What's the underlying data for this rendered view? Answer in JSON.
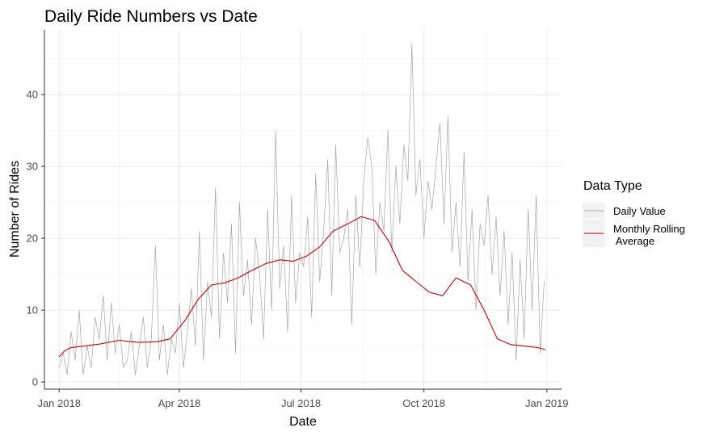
{
  "chart_data": {
    "type": "line",
    "title": "Daily Ride Numbers vs Date",
    "xlabel": "Date",
    "ylabel": "Number of Rides",
    "x_ticks": [
      "Jan 2018",
      "Apr 2018",
      "Jul 2018",
      "Oct 2018",
      "Jan 2019"
    ],
    "x_tick_dates": [
      "2018-01-01",
      "2018-04-01",
      "2018-07-01",
      "2018-10-01",
      "2019-01-01"
    ],
    "xlim": [
      "2017-12-21",
      "2019-01-12"
    ],
    "y_ticks": [
      0,
      10,
      20,
      30,
      40
    ],
    "ylim": [
      -1,
      49
    ],
    "grid": true,
    "legend": {
      "title": "Data Type",
      "position": "right",
      "entries": [
        {
          "label": "Daily Value",
          "color": "#a6a6a6"
        },
        {
          "label": "Monthly Rolling\n Average",
          "color": "#cc0000"
        }
      ]
    },
    "series": [
      {
        "name": "Daily Value",
        "color": "#a6a6a6",
        "x": [
          "2018-01-01",
          "2018-01-04",
          "2018-01-07",
          "2018-01-10",
          "2018-01-13",
          "2018-01-16",
          "2018-01-19",
          "2018-01-22",
          "2018-01-25",
          "2018-01-28",
          "2018-01-31",
          "2018-02-03",
          "2018-02-06",
          "2018-02-09",
          "2018-02-12",
          "2018-02-15",
          "2018-02-18",
          "2018-02-21",
          "2018-02-24",
          "2018-02-27",
          "2018-03-02",
          "2018-03-05",
          "2018-03-08",
          "2018-03-11",
          "2018-03-14",
          "2018-03-17",
          "2018-03-20",
          "2018-03-23",
          "2018-03-26",
          "2018-03-29",
          "2018-04-01",
          "2018-04-04",
          "2018-04-07",
          "2018-04-10",
          "2018-04-13",
          "2018-04-16",
          "2018-04-19",
          "2018-04-22",
          "2018-04-25",
          "2018-04-28",
          "2018-05-01",
          "2018-05-04",
          "2018-05-07",
          "2018-05-10",
          "2018-05-13",
          "2018-05-16",
          "2018-05-19",
          "2018-05-22",
          "2018-05-25",
          "2018-05-28",
          "2018-05-31",
          "2018-06-03",
          "2018-06-06",
          "2018-06-09",
          "2018-06-12",
          "2018-06-15",
          "2018-06-18",
          "2018-06-21",
          "2018-06-24",
          "2018-06-27",
          "2018-06-30",
          "2018-07-03",
          "2018-07-06",
          "2018-07-09",
          "2018-07-12",
          "2018-07-15",
          "2018-07-18",
          "2018-07-21",
          "2018-07-24",
          "2018-07-27",
          "2018-07-30",
          "2018-08-02",
          "2018-08-05",
          "2018-08-08",
          "2018-08-11",
          "2018-08-14",
          "2018-08-17",
          "2018-08-20",
          "2018-08-23",
          "2018-08-26",
          "2018-08-29",
          "2018-09-01",
          "2018-09-04",
          "2018-09-07",
          "2018-09-10",
          "2018-09-13",
          "2018-09-16",
          "2018-09-19",
          "2018-09-22",
          "2018-09-25",
          "2018-09-28",
          "2018-10-01",
          "2018-10-04",
          "2018-10-07",
          "2018-10-10",
          "2018-10-13",
          "2018-10-16",
          "2018-10-19",
          "2018-10-22",
          "2018-10-25",
          "2018-10-28",
          "2018-10-31",
          "2018-11-03",
          "2018-11-06",
          "2018-11-09",
          "2018-11-12",
          "2018-11-15",
          "2018-11-18",
          "2018-11-21",
          "2018-11-24",
          "2018-11-27",
          "2018-11-30",
          "2018-12-03",
          "2018-12-06",
          "2018-12-09",
          "2018-12-12",
          "2018-12-15",
          "2018-12-18",
          "2018-12-21",
          "2018-12-24",
          "2018-12-27",
          "2018-12-30"
        ],
        "values": [
          2,
          4,
          1,
          7,
          3,
          10,
          1,
          5,
          2,
          9,
          6,
          12,
          3,
          11,
          4,
          8,
          2,
          3,
          7,
          1,
          5,
          9,
          2,
          6,
          19,
          3,
          8,
          1,
          6,
          4,
          11,
          2,
          7,
          13,
          5,
          21,
          3,
          14,
          9,
          27,
          6,
          18,
          11,
          22,
          4,
          25,
          12,
          17,
          8,
          20,
          15,
          6,
          24,
          10,
          35,
          13,
          19,
          7,
          26,
          11,
          18,
          16,
          23,
          9,
          29,
          14,
          21,
          31,
          12,
          33,
          18,
          20,
          24,
          8,
          26,
          16,
          28,
          34,
          30,
          15,
          25,
          21,
          35,
          18,
          30,
          22,
          33,
          28,
          47,
          26,
          31,
          20,
          28,
          24,
          30,
          36,
          22,
          37,
          18,
          25,
          16,
          32,
          14,
          24,
          10,
          22,
          19,
          26,
          15,
          23,
          12,
          21,
          8,
          18,
          3,
          17,
          6,
          24,
          10,
          26,
          4,
          14
        ],
        "note_values": "approximate reading"
      },
      {
        "name": "Monthly Rolling\n Average",
        "color": "#cc0000",
        "x": [
          "2018-01-01",
          "2018-01-05",
          "2018-01-10",
          "2018-01-20",
          "2018-02-01",
          "2018-02-15",
          "2018-03-01",
          "2018-03-15",
          "2018-03-25",
          "2018-04-05",
          "2018-04-15",
          "2018-04-25",
          "2018-05-05",
          "2018-05-15",
          "2018-05-25",
          "2018-06-05",
          "2018-06-15",
          "2018-06-25",
          "2018-07-05",
          "2018-07-15",
          "2018-07-25",
          "2018-08-05",
          "2018-08-15",
          "2018-08-25",
          "2018-09-05",
          "2018-09-15",
          "2018-09-25",
          "2018-10-05",
          "2018-10-15",
          "2018-10-25",
          "2018-11-05",
          "2018-11-15",
          "2018-11-25",
          "2018-12-05",
          "2018-12-15",
          "2018-12-25",
          "2018-12-31"
        ],
        "values": [
          3.5,
          4.3,
          4.8,
          5.0,
          5.3,
          5.8,
          5.5,
          5.6,
          6.0,
          8.5,
          11.5,
          13.5,
          13.8,
          14.5,
          15.5,
          16.5,
          17.0,
          16.8,
          17.5,
          18.8,
          21.0,
          22.0,
          23.0,
          22.5,
          19.5,
          15.5,
          14.0,
          12.5,
          12.0,
          14.5,
          13.5,
          10.0,
          6.0,
          5.2,
          5.0,
          4.8,
          4.5
        ]
      }
    ]
  }
}
